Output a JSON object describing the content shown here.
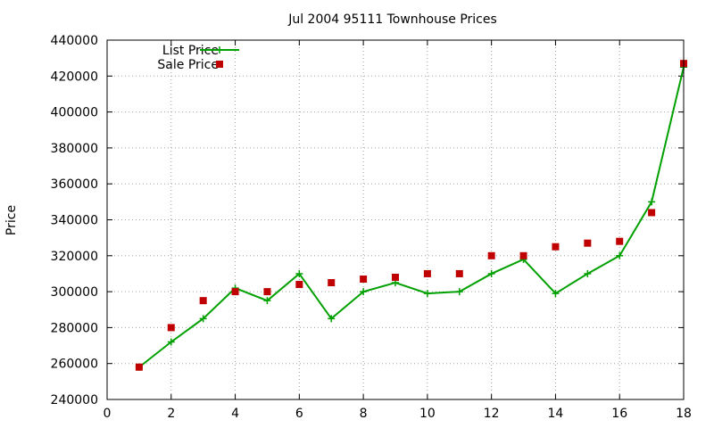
{
  "chart_data": {
    "type": "line",
    "title": "Jul 2004 95111 Townhouse Prices",
    "xlabel": "",
    "ylabel": "Price",
    "xlim": [
      0,
      18
    ],
    "ylim": [
      240000,
      440000
    ],
    "x_ticks": [
      0,
      2,
      4,
      6,
      8,
      10,
      12,
      14,
      16,
      18
    ],
    "y_ticks": [
      240000,
      260000,
      280000,
      300000,
      320000,
      340000,
      360000,
      380000,
      400000,
      420000,
      440000
    ],
    "grid": true,
    "legend_position": "top-left",
    "series": [
      {
        "name": "List Price",
        "style": "line-with-plus-markers",
        "color": "#00a000",
        "x": [
          1,
          2,
          3,
          4,
          5,
          6,
          7,
          8,
          9,
          10,
          11,
          12,
          13,
          14,
          15,
          16,
          17,
          18
        ],
        "values": [
          258000,
          272000,
          285000,
          302000,
          295000,
          310000,
          285000,
          300000,
          305000,
          299000,
          300000,
          310000,
          318000,
          299000,
          310000,
          320000,
          350000,
          425000
        ]
      },
      {
        "name": "Sale Price",
        "style": "square-markers",
        "color": "#c00000",
        "x": [
          1,
          2,
          3,
          4,
          5,
          6,
          7,
          8,
          9,
          10,
          11,
          12,
          13,
          14,
          15,
          16,
          17,
          18
        ],
        "values": [
          258000,
          280000,
          295000,
          300000,
          300000,
          304000,
          305000,
          307000,
          308000,
          310000,
          310000,
          320000,
          320000,
          325000,
          327000,
          328000,
          344000,
          427000
        ]
      }
    ]
  }
}
